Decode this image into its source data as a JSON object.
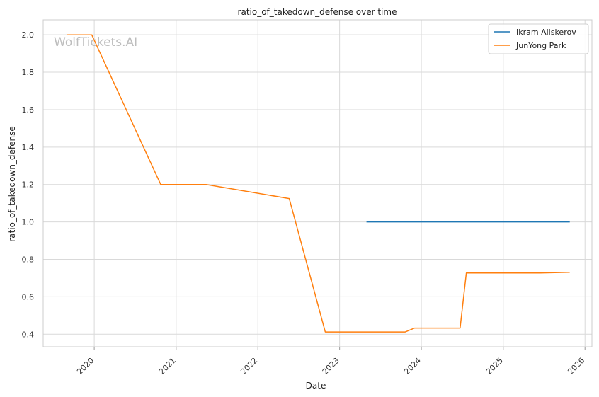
{
  "watermark": "WolfTickets.AI",
  "chart_data": {
    "type": "line",
    "title": "ratio_of_takedown_defense over time",
    "xlabel": "Date",
    "ylabel": "ratio_of_takedown_defense",
    "x_ticks": [
      "2020",
      "2021",
      "2022",
      "2023",
      "2024",
      "2025",
      "2026"
    ],
    "y_ticks": [
      "0.4",
      "0.6",
      "0.8",
      "1.0",
      "1.2",
      "1.4",
      "1.6",
      "1.8",
      "2.0"
    ],
    "xlim": [
      "2019-05-18",
      "2026-02-01"
    ],
    "ylim": [
      0.333,
      2.08
    ],
    "grid": true,
    "legend_position": "top-right",
    "series": [
      {
        "name": "Ikram Aliskerov",
        "color": "#1f77b4",
        "points": [
          [
            "2023-05-01",
            1.0
          ],
          [
            "2025-10-25",
            1.0
          ]
        ]
      },
      {
        "name": "JunYong Park",
        "color": "#ff7f0e",
        "points": [
          [
            "2019-08-31",
            2.0
          ],
          [
            "2019-12-21",
            2.0
          ],
          [
            "2020-10-24",
            1.2
          ],
          [
            "2021-05-15",
            1.2
          ],
          [
            "2022-05-21",
            1.125
          ],
          [
            "2022-10-29",
            0.412
          ],
          [
            "2023-10-21",
            0.412
          ],
          [
            "2023-12-02",
            0.433
          ],
          [
            "2024-06-22",
            0.433
          ],
          [
            "2024-07-20",
            0.727
          ],
          [
            "2025-06-14",
            0.727
          ],
          [
            "2025-10-25",
            0.731
          ]
        ]
      }
    ]
  }
}
